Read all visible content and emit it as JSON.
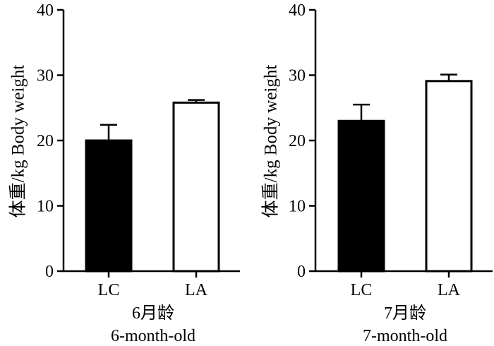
{
  "chart_data": [
    {
      "type": "bar",
      "categories": [
        "LC",
        "LA"
      ],
      "values": [
        20.0,
        25.8
      ],
      "error": [
        2.4,
        0.4
      ],
      "bar_fill": [
        "#000000",
        "#ffffff"
      ],
      "ylabel": "体重/kg Body weight",
      "xlabel_line1": "6月龄",
      "xlabel_line2": "6-month-old",
      "ylim": [
        0,
        40
      ],
      "yticks": [
        "0",
        "10",
        "20",
        "30",
        "40"
      ],
      "grid": false
    },
    {
      "type": "bar",
      "categories": [
        "LC",
        "LA"
      ],
      "values": [
        23.0,
        29.1
      ],
      "error": [
        2.5,
        1.0
      ],
      "bar_fill": [
        "#000000",
        "#ffffff"
      ],
      "ylabel": "体重/kg Body weight",
      "xlabel_line1": "7月龄",
      "xlabel_line2": "7-month-old",
      "ylim": [
        0,
        40
      ],
      "yticks": [
        "0",
        "10",
        "20",
        "30",
        "40"
      ],
      "grid": false
    }
  ]
}
